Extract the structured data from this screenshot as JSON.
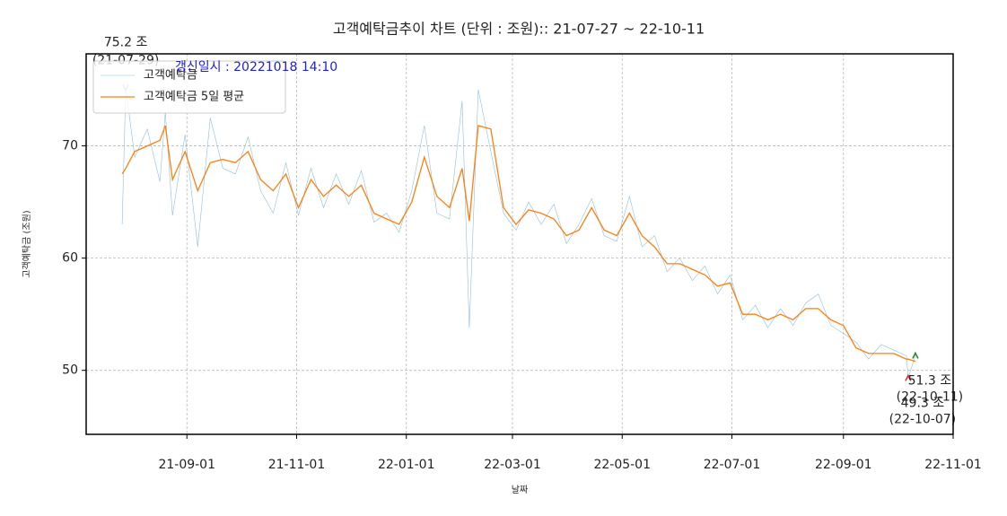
{
  "chart_data": {
    "type": "line",
    "title": "고객예탁금추이 차트 (단위 : 조원):: 21-07-27 ~ 22-10-11",
    "subtitle": "갱신일시 : 20221018 14:10",
    "x_label": "날짜",
    "y_label": "고객예탁금 (조원)",
    "x": [
      "21-07-27",
      "21-07-29",
      "21-08-03",
      "21-08-10",
      "21-08-17",
      "21-08-20",
      "21-08-24",
      "21-08-31",
      "21-09-07",
      "21-09-14",
      "21-09-21",
      "21-09-28",
      "21-10-05",
      "21-10-12",
      "21-10-19",
      "21-10-26",
      "21-11-02",
      "21-11-09",
      "21-11-16",
      "21-11-23",
      "21-11-30",
      "21-12-07",
      "21-12-14",
      "21-12-21",
      "21-12-28",
      "22-01-04",
      "22-01-11",
      "22-01-18",
      "22-01-25",
      "22-02-01",
      "22-02-05",
      "22-02-10",
      "22-02-17",
      "22-02-24",
      "22-03-03",
      "22-03-10",
      "22-03-17",
      "22-03-24",
      "22-03-31",
      "22-04-07",
      "22-04-14",
      "22-04-21",
      "22-04-28",
      "22-05-05",
      "22-05-12",
      "22-05-19",
      "22-05-26",
      "22-06-02",
      "22-06-09",
      "22-06-16",
      "22-06-23",
      "22-06-30",
      "22-07-07",
      "22-07-14",
      "22-07-21",
      "22-07-28",
      "22-08-04",
      "22-08-11",
      "22-08-18",
      "22-08-25",
      "22-09-01",
      "22-09-08",
      "22-09-15",
      "22-09-22",
      "22-09-29",
      "22-10-06",
      "22-10-07",
      "22-10-11"
    ],
    "series": [
      {
        "name": "고객예탁금",
        "color": "#8fbfe0",
        "width": 0.6,
        "values": [
          63.0,
          75.2,
          69.0,
          71.5,
          66.8,
          73.0,
          63.8,
          71.0,
          61.0,
          72.5,
          68.0,
          67.5,
          70.8,
          66.0,
          64.0,
          68.5,
          63.8,
          68.0,
          64.5,
          67.5,
          64.8,
          67.8,
          63.2,
          64.0,
          62.3,
          66.0,
          71.8,
          64.0,
          63.5,
          74.0,
          53.8,
          75.0,
          69.5,
          64.0,
          62.5,
          65.0,
          63.0,
          64.8,
          61.3,
          63.0,
          65.3,
          62.0,
          61.5,
          65.5,
          61.0,
          62.0,
          58.8,
          60.0,
          58.0,
          59.3,
          56.8,
          58.5,
          54.5,
          55.8,
          53.8,
          55.5,
          54.0,
          56.0,
          56.8,
          54.0,
          53.3,
          52.5,
          51.0,
          52.3,
          51.8,
          51.3,
          49.3,
          51.3
        ]
      },
      {
        "name": "고객예탁금 5일 평균",
        "color": "#ff7f0e",
        "width": 1.3,
        "values": [
          67.5,
          68.0,
          69.5,
          70.0,
          70.5,
          71.8,
          67.0,
          69.5,
          66.0,
          68.5,
          68.8,
          68.5,
          69.5,
          67.0,
          66.0,
          67.5,
          64.5,
          67.0,
          65.5,
          66.5,
          65.5,
          66.5,
          64.0,
          63.5,
          63.0,
          65.0,
          69.0,
          65.5,
          64.5,
          68.0,
          63.3,
          71.8,
          71.5,
          64.5,
          63.0,
          64.3,
          64.0,
          63.5,
          62.0,
          62.5,
          64.5,
          62.5,
          62.0,
          64.0,
          62.0,
          61.0,
          59.5,
          59.5,
          59.0,
          58.5,
          57.5,
          57.8,
          55.0,
          55.0,
          54.5,
          55.0,
          54.5,
          55.5,
          55.5,
          54.5,
          54.0,
          52.0,
          51.5,
          51.5,
          51.5,
          51.0,
          51.0,
          50.8
        ]
      }
    ],
    "annotations": [
      {
        "x": "21-07-29",
        "y": 75.2,
        "lines": [
          "75.2 조",
          "(21-07-29)"
        ],
        "color": "#b0a8f0",
        "marker": "down"
      },
      {
        "x": "22-10-07",
        "y": 49.3,
        "lines": [
          "49.3 조",
          "(22-10-07)"
        ],
        "color": "#e8262a",
        "marker": "up"
      },
      {
        "x": "22-10-11",
        "y": 51.3,
        "lines": [
          "51.3 조",
          "(22-10-11)"
        ],
        "color": "#1a8a1a",
        "marker": "up"
      }
    ],
    "xlim": [
      "21-07-07",
      "22-11-01"
    ],
    "xticks": [
      "21-09-01",
      "21-11-01",
      "22-01-01",
      "22-03-01",
      "22-05-01",
      "22-07-01",
      "22-09-01",
      "22-11-01"
    ],
    "ylim": [
      44.3,
      78.2
    ],
    "yticks": [
      50,
      60,
      70
    ],
    "grid": true,
    "legend": "upper-left"
  }
}
